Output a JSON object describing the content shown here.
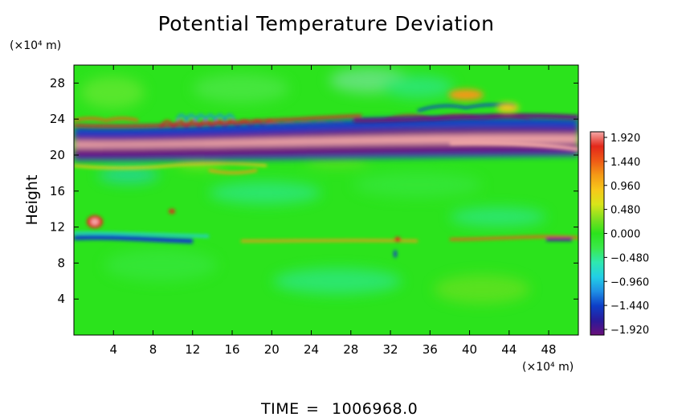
{
  "chart_data": {
    "type": "heatmap",
    "title": "Potential Temperature Deviation",
    "xlabel": "",
    "ylabel": "Height",
    "x_unit": "(×10⁴ m)",
    "y_unit": "(×10⁴ m)",
    "x_ticks": [
      "4",
      "8",
      "12",
      "16",
      "20",
      "24",
      "28",
      "32",
      "36",
      "40",
      "44",
      "48"
    ],
    "y_ticks": [
      "4",
      "8",
      "12",
      "16",
      "20",
      "24",
      "28"
    ],
    "xlim": [
      0,
      51
    ],
    "ylim": [
      0,
      30
    ],
    "colorbar": {
      "ticks": [
        "1.920",
        "1.440",
        "0.960",
        "0.480",
        "0.000",
        "−0.480",
        "−0.960",
        "−1.440",
        "−1.920"
      ],
      "range": [
        -1.92,
        1.92
      ],
      "colors": [
        "#6a0f7a",
        "#2a1a9a",
        "#0d3ec7",
        "#1f8fe5",
        "#22cfe6",
        "#2fe8b0",
        "#3ae84a",
        "#2be31c",
        "#7fe020",
        "#d8e51a",
        "#f7c81a",
        "#f49a16",
        "#ef5a16",
        "#e3281a",
        "#f4a8a8"
      ]
    },
    "features": [
      {
        "name": "tropopause warm band",
        "y": 21.5,
        "value": 1.92
      },
      {
        "name": "cold band above",
        "y": 22.8,
        "value": -1.92
      },
      {
        "name": "cold band below",
        "y": 20.3,
        "value": -1.92
      },
      {
        "name": "lower cold streak",
        "y": 10.5,
        "value": -1.44
      },
      {
        "name": "upper warm blob",
        "x": 39,
        "y": 27,
        "value": 1.0
      }
    ]
  },
  "footer": {
    "label": "TIME",
    "equals": "=",
    "value": "1006968.0"
  },
  "colors": {
    "background": "#2be31c",
    "frame": "#000000"
  }
}
